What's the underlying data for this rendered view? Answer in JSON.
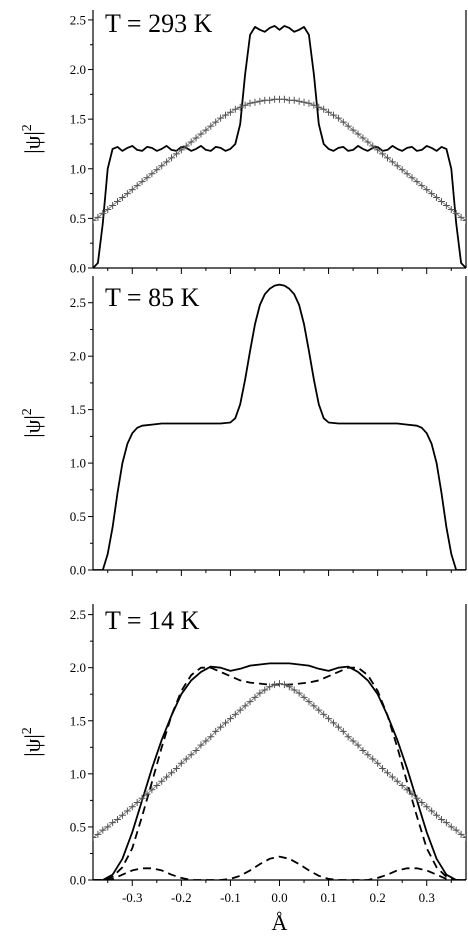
{
  "figure": {
    "xlabel": "Å",
    "x_ticks": [
      "-0.3",
      "-0.2",
      "-0.1",
      "0.0",
      "0.1",
      "0.2",
      "0.3"
    ],
    "y_ticks": [
      "0.0",
      "0.5",
      "1.0",
      "1.5",
      "2.0",
      "2.5"
    ],
    "ylabel_main": "|ψ|",
    "ylabel_sup": "2"
  },
  "chart_data": [
    {
      "type": "line",
      "title": "T = 293 K",
      "xlim": [
        -0.38,
        0.38
      ],
      "ylim": [
        0,
        2.6
      ],
      "series": [
        {
          "style": "solid",
          "x": [
            -0.38,
            -0.37,
            -0.36,
            -0.35,
            -0.34,
            -0.33,
            -0.32,
            -0.31,
            -0.3,
            -0.29,
            -0.28,
            -0.27,
            -0.26,
            -0.25,
            -0.24,
            -0.23,
            -0.22,
            -0.21,
            -0.2,
            -0.19,
            -0.18,
            -0.17,
            -0.16,
            -0.15,
            -0.14,
            -0.13,
            -0.12,
            -0.11,
            -0.1,
            -0.09,
            -0.08,
            -0.07,
            -0.06,
            -0.05,
            -0.04,
            -0.03,
            -0.02,
            -0.01,
            0.0,
            0.01,
            0.02,
            0.03,
            0.04,
            0.05,
            0.06,
            0.07,
            0.08,
            0.09,
            0.1,
            0.11,
            0.12,
            0.13,
            0.14,
            0.15,
            0.16,
            0.17,
            0.18,
            0.19,
            0.2,
            0.21,
            0.22,
            0.23,
            0.24,
            0.25,
            0.26,
            0.27,
            0.28,
            0.29,
            0.3,
            0.31,
            0.32,
            0.33,
            0.34,
            0.35,
            0.36,
            0.37,
            0.38
          ],
          "y": [
            0.0,
            0.05,
            0.45,
            1.0,
            1.2,
            1.22,
            1.18,
            1.21,
            1.23,
            1.19,
            1.18,
            1.22,
            1.21,
            1.18,
            1.2,
            1.23,
            1.19,
            1.18,
            1.22,
            1.21,
            1.18,
            1.2,
            1.23,
            1.19,
            1.18,
            1.22,
            1.21,
            1.18,
            1.2,
            1.25,
            1.45,
            1.95,
            2.35,
            2.43,
            2.4,
            2.38,
            2.42,
            2.44,
            2.4,
            2.44,
            2.42,
            2.38,
            2.4,
            2.43,
            2.35,
            1.95,
            1.45,
            1.25,
            1.2,
            1.18,
            1.21,
            1.22,
            1.18,
            1.19,
            1.23,
            1.2,
            1.18,
            1.21,
            1.22,
            1.18,
            1.19,
            1.23,
            1.2,
            1.18,
            1.21,
            1.22,
            1.18,
            1.19,
            1.23,
            1.21,
            1.18,
            1.22,
            1.2,
            1.0,
            0.45,
            0.05,
            0.0
          ]
        },
        {
          "style": "crosses",
          "x": [
            -0.38,
            -0.37,
            -0.36,
            -0.35,
            -0.34,
            -0.33,
            -0.32,
            -0.31,
            -0.3,
            -0.29,
            -0.28,
            -0.27,
            -0.26,
            -0.25,
            -0.24,
            -0.23,
            -0.22,
            -0.21,
            -0.2,
            -0.19,
            -0.18,
            -0.17,
            -0.16,
            -0.15,
            -0.14,
            -0.13,
            -0.12,
            -0.11,
            -0.1,
            -0.09,
            -0.08,
            -0.07,
            -0.06,
            -0.05,
            -0.04,
            -0.03,
            -0.02,
            -0.01,
            0.0,
            0.01,
            0.02,
            0.03,
            0.04,
            0.05,
            0.06,
            0.07,
            0.08,
            0.09,
            0.1,
            0.11,
            0.12,
            0.13,
            0.14,
            0.15,
            0.16,
            0.17,
            0.18,
            0.19,
            0.2,
            0.21,
            0.22,
            0.23,
            0.24,
            0.25,
            0.26,
            0.27,
            0.28,
            0.29,
            0.3,
            0.31,
            0.32,
            0.33,
            0.34,
            0.35,
            0.36,
            0.37,
            0.38
          ],
          "y": [
            0.48,
            0.51,
            0.55,
            0.59,
            0.63,
            0.67,
            0.71,
            0.75,
            0.79,
            0.83,
            0.87,
            0.91,
            0.95,
            0.99,
            1.03,
            1.07,
            1.11,
            1.15,
            1.19,
            1.23,
            1.27,
            1.31,
            1.35,
            1.39,
            1.43,
            1.47,
            1.51,
            1.54,
            1.57,
            1.6,
            1.62,
            1.64,
            1.66,
            1.67,
            1.68,
            1.69,
            1.69,
            1.7,
            1.7,
            1.7,
            1.69,
            1.69,
            1.68,
            1.67,
            1.66,
            1.64,
            1.62,
            1.6,
            1.57,
            1.54,
            1.51,
            1.47,
            1.43,
            1.39,
            1.35,
            1.31,
            1.27,
            1.23,
            1.19,
            1.15,
            1.11,
            1.07,
            1.03,
            0.99,
            0.95,
            0.91,
            0.87,
            0.83,
            0.79,
            0.75,
            0.71,
            0.67,
            0.63,
            0.59,
            0.55,
            0.51,
            0.48
          ]
        }
      ]
    },
    {
      "type": "line",
      "title": "T = 85 K",
      "xlim": [
        -0.38,
        0.38
      ],
      "ylim": [
        0,
        2.75
      ],
      "series": [
        {
          "style": "solid",
          "x": [
            -0.38,
            -0.36,
            -0.35,
            -0.34,
            -0.33,
            -0.32,
            -0.31,
            -0.3,
            -0.29,
            -0.28,
            -0.26,
            -0.24,
            -0.22,
            -0.2,
            -0.18,
            -0.16,
            -0.14,
            -0.12,
            -0.1,
            -0.09,
            -0.08,
            -0.07,
            -0.06,
            -0.05,
            -0.04,
            -0.03,
            -0.02,
            -0.01,
            0.0,
            0.01,
            0.02,
            0.03,
            0.04,
            0.05,
            0.06,
            0.07,
            0.08,
            0.09,
            0.1,
            0.12,
            0.14,
            0.16,
            0.18,
            0.2,
            0.22,
            0.24,
            0.26,
            0.28,
            0.29,
            0.3,
            0.31,
            0.32,
            0.33,
            0.34,
            0.35,
            0.36,
            0.38
          ],
          "y": [
            0.0,
            0.0,
            0.15,
            0.4,
            0.72,
            1.0,
            1.18,
            1.28,
            1.33,
            1.35,
            1.36,
            1.37,
            1.37,
            1.37,
            1.37,
            1.37,
            1.37,
            1.37,
            1.38,
            1.42,
            1.55,
            1.78,
            2.05,
            2.3,
            2.48,
            2.58,
            2.63,
            2.66,
            2.67,
            2.66,
            2.63,
            2.58,
            2.48,
            2.3,
            2.05,
            1.78,
            1.55,
            1.42,
            1.38,
            1.37,
            1.37,
            1.37,
            1.37,
            1.37,
            1.37,
            1.37,
            1.36,
            1.35,
            1.33,
            1.28,
            1.18,
            1.0,
            0.72,
            0.4,
            0.15,
            0.0,
            0.0
          ]
        }
      ]
    },
    {
      "type": "line",
      "title": "T = 14 K",
      "xlim": [
        -0.38,
        0.38
      ],
      "ylim": [
        0,
        2.6
      ],
      "series": [
        {
          "style": "solid",
          "x": [
            -0.38,
            -0.36,
            -0.34,
            -0.32,
            -0.3,
            -0.28,
            -0.26,
            -0.24,
            -0.22,
            -0.2,
            -0.18,
            -0.16,
            -0.14,
            -0.12,
            -0.1,
            -0.08,
            -0.06,
            -0.04,
            -0.02,
            0.0,
            0.02,
            0.04,
            0.06,
            0.08,
            0.1,
            0.12,
            0.14,
            0.16,
            0.18,
            0.2,
            0.22,
            0.24,
            0.26,
            0.28,
            0.3,
            0.32,
            0.34,
            0.36,
            0.38
          ],
          "y": [
            0.0,
            0.0,
            0.05,
            0.2,
            0.45,
            0.75,
            1.05,
            1.32,
            1.55,
            1.75,
            1.88,
            1.96,
            2.01,
            2.0,
            1.97,
            1.99,
            2.02,
            2.03,
            2.04,
            2.04,
            2.04,
            2.03,
            2.02,
            1.99,
            1.97,
            2.0,
            2.01,
            1.96,
            1.88,
            1.75,
            1.55,
            1.32,
            1.05,
            0.75,
            0.45,
            0.2,
            0.05,
            0.0,
            0.0
          ]
        },
        {
          "style": "dashed",
          "x": [
            -0.38,
            -0.36,
            -0.34,
            -0.32,
            -0.3,
            -0.28,
            -0.26,
            -0.24,
            -0.22,
            -0.2,
            -0.18,
            -0.16,
            -0.14,
            -0.12,
            -0.1,
            -0.08,
            -0.06,
            -0.04,
            -0.02,
            0.0,
            0.02,
            0.04,
            0.06,
            0.08,
            0.1,
            0.12,
            0.14,
            0.16,
            0.18,
            0.2,
            0.22,
            0.24,
            0.26,
            0.28,
            0.3,
            0.32,
            0.34,
            0.36,
            0.38
          ],
          "y": [
            0.0,
            0.0,
            0.03,
            0.12,
            0.3,
            0.6,
            0.92,
            1.25,
            1.55,
            1.78,
            1.93,
            2.0,
            2.0,
            1.96,
            1.92,
            1.88,
            1.86,
            1.85,
            1.84,
            1.84,
            1.84,
            1.85,
            1.86,
            1.88,
            1.92,
            1.96,
            2.0,
            2.0,
            1.93,
            1.78,
            1.55,
            1.25,
            0.92,
            0.6,
            0.3,
            0.12,
            0.03,
            0.0,
            0.0
          ]
        },
        {
          "style": "dashed",
          "x": [
            -0.38,
            -0.36,
            -0.34,
            -0.32,
            -0.3,
            -0.28,
            -0.26,
            -0.24,
            -0.22,
            -0.2,
            -0.18,
            -0.16,
            -0.14,
            -0.12,
            -0.1,
            -0.08,
            -0.06,
            -0.04,
            -0.02,
            0.0,
            0.02,
            0.04,
            0.06,
            0.08,
            0.1,
            0.12,
            0.14,
            0.16,
            0.18,
            0.2,
            0.22,
            0.24,
            0.26,
            0.28,
            0.3,
            0.32,
            0.34,
            0.36,
            0.38
          ],
          "y": [
            0.0,
            0.0,
            0.01,
            0.05,
            0.09,
            0.11,
            0.11,
            0.09,
            0.05,
            0.02,
            0.0,
            0.0,
            0.0,
            0.0,
            0.01,
            0.04,
            0.09,
            0.15,
            0.2,
            0.22,
            0.2,
            0.15,
            0.09,
            0.04,
            0.01,
            0.0,
            0.0,
            0.0,
            0.0,
            0.02,
            0.05,
            0.09,
            0.11,
            0.11,
            0.09,
            0.05,
            0.01,
            0.0,
            0.0
          ]
        },
        {
          "style": "crosses",
          "x": [
            -0.38,
            -0.37,
            -0.36,
            -0.35,
            -0.34,
            -0.33,
            -0.32,
            -0.31,
            -0.3,
            -0.29,
            -0.28,
            -0.27,
            -0.26,
            -0.25,
            -0.24,
            -0.23,
            -0.22,
            -0.21,
            -0.2,
            -0.19,
            -0.18,
            -0.17,
            -0.16,
            -0.15,
            -0.14,
            -0.13,
            -0.12,
            -0.11,
            -0.1,
            -0.09,
            -0.08,
            -0.07,
            -0.06,
            -0.05,
            -0.04,
            -0.03,
            -0.02,
            -0.01,
            0.0,
            0.01,
            0.02,
            0.03,
            0.04,
            0.05,
            0.06,
            0.07,
            0.08,
            0.09,
            0.1,
            0.11,
            0.12,
            0.13,
            0.14,
            0.15,
            0.16,
            0.17,
            0.18,
            0.19,
            0.2,
            0.21,
            0.22,
            0.23,
            0.24,
            0.25,
            0.26,
            0.27,
            0.28,
            0.29,
            0.3,
            0.31,
            0.32,
            0.33,
            0.34,
            0.35,
            0.36,
            0.37,
            0.38
          ],
          "y": [
            0.4,
            0.43,
            0.47,
            0.5,
            0.54,
            0.57,
            0.61,
            0.65,
            0.69,
            0.73,
            0.77,
            0.81,
            0.85,
            0.89,
            0.93,
            0.97,
            1.01,
            1.05,
            1.1,
            1.14,
            1.18,
            1.22,
            1.27,
            1.31,
            1.35,
            1.4,
            1.44,
            1.48,
            1.52,
            1.56,
            1.6,
            1.64,
            1.68,
            1.72,
            1.76,
            1.79,
            1.82,
            1.84,
            1.85,
            1.84,
            1.82,
            1.79,
            1.76,
            1.72,
            1.68,
            1.64,
            1.6,
            1.56,
            1.52,
            1.48,
            1.44,
            1.4,
            1.35,
            1.31,
            1.27,
            1.22,
            1.18,
            1.14,
            1.1,
            1.05,
            1.01,
            0.97,
            0.93,
            0.89,
            0.85,
            0.81,
            0.77,
            0.73,
            0.69,
            0.65,
            0.61,
            0.57,
            0.54,
            0.5,
            0.47,
            0.43,
            0.4
          ]
        }
      ]
    }
  ]
}
